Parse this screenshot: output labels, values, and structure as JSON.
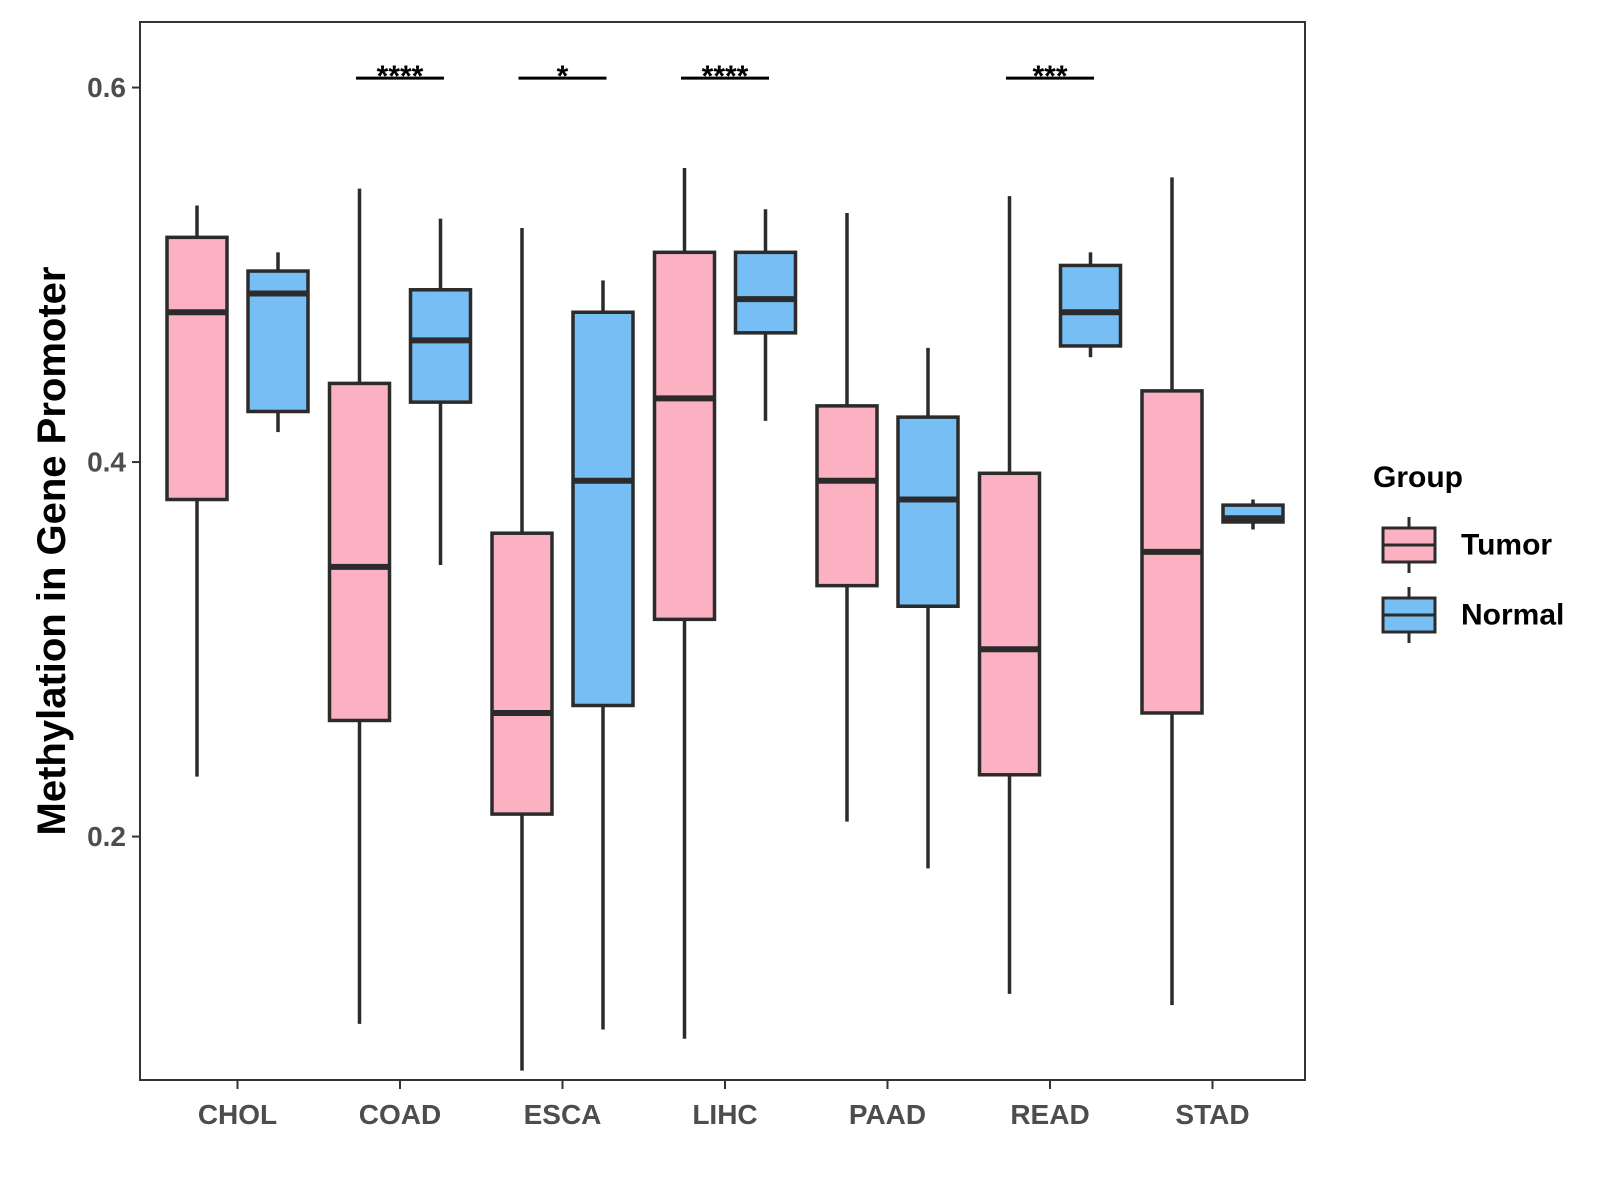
{
  "chart_data": {
    "type": "boxplot",
    "title": "",
    "xlabel": "",
    "ylabel": "Methylation in Gene Promoter",
    "ylim": [
      0.07,
      0.635
    ],
    "yticks": [
      0.2,
      0.4,
      0.6
    ],
    "ytick_labels": [
      "0.2",
      "0.4",
      "0.6"
    ],
    "grid": false,
    "categories": [
      "CHOL",
      "COAD",
      "ESCA",
      "LIHC",
      "PAAD",
      "READ",
      "STAD"
    ],
    "series": [
      {
        "name": "Tumor",
        "color": "#FBB1C2",
        "boxes": [
          {
            "category": "CHOL",
            "min": 0.232,
            "q1": 0.38,
            "median": 0.48,
            "q3": 0.52,
            "max": 0.537
          },
          {
            "category": "COAD",
            "min": 0.1,
            "q1": 0.262,
            "median": 0.344,
            "q3": 0.442,
            "max": 0.546
          },
          {
            "category": "ESCA",
            "min": 0.075,
            "q1": 0.212,
            "median": 0.266,
            "q3": 0.362,
            "max": 0.525
          },
          {
            "category": "LIHC",
            "min": 0.092,
            "q1": 0.316,
            "median": 0.434,
            "q3": 0.512,
            "max": 0.557
          },
          {
            "category": "PAAD",
            "min": 0.208,
            "q1": 0.334,
            "median": 0.39,
            "q3": 0.43,
            "max": 0.533
          },
          {
            "category": "READ",
            "min": 0.116,
            "q1": 0.233,
            "median": 0.3,
            "q3": 0.394,
            "max": 0.542
          },
          {
            "category": "STAD",
            "min": 0.11,
            "q1": 0.266,
            "median": 0.352,
            "q3": 0.438,
            "max": 0.552
          }
        ]
      },
      {
        "name": "Normal",
        "color": "#77BEF5",
        "boxes": [
          {
            "category": "CHOL",
            "min": 0.416,
            "q1": 0.427,
            "median": 0.49,
            "q3": 0.502,
            "max": 0.512
          },
          {
            "category": "COAD",
            "min": 0.345,
            "q1": 0.432,
            "median": 0.465,
            "q3": 0.492,
            "max": 0.53
          },
          {
            "category": "ESCA",
            "min": 0.097,
            "q1": 0.27,
            "median": 0.39,
            "q3": 0.48,
            "max": 0.497
          },
          {
            "category": "LIHC",
            "min": 0.422,
            "q1": 0.469,
            "median": 0.487,
            "q3": 0.512,
            "max": 0.535
          },
          {
            "category": "PAAD",
            "min": 0.183,
            "q1": 0.323,
            "median": 0.38,
            "q3": 0.424,
            "max": 0.461
          },
          {
            "category": "READ",
            "min": 0.456,
            "q1": 0.462,
            "median": 0.48,
            "q3": 0.505,
            "max": 0.512
          },
          {
            "category": "STAD",
            "min": 0.364,
            "q1": 0.368,
            "median": 0.37,
            "q3": 0.377,
            "max": 0.38
          }
        ]
      }
    ],
    "significance": [
      {
        "category": "COAD",
        "label": "****",
        "y": 0.605
      },
      {
        "category": "ESCA",
        "label": "*",
        "y": 0.605
      },
      {
        "category": "LIHC",
        "label": "****",
        "y": 0.605
      },
      {
        "category": "READ",
        "label": "***",
        "y": 0.605
      }
    ],
    "legend": {
      "title": "Group",
      "position": "right",
      "items": [
        "Tumor",
        "Normal"
      ]
    }
  }
}
